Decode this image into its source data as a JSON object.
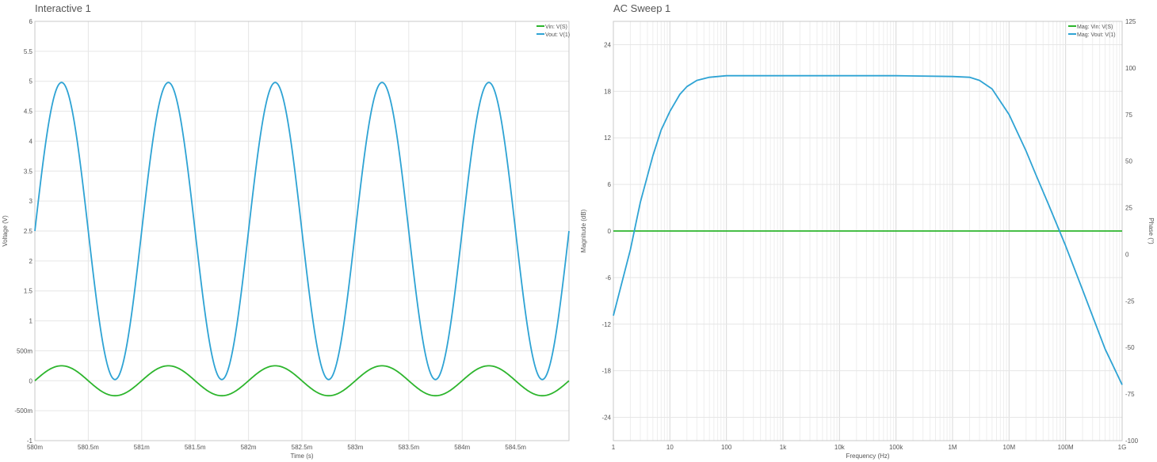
{
  "chart_data": [
    {
      "type": "line",
      "title": "Interactive 1",
      "xlabel": "Time (s)",
      "ylabel": "Voltage (V)",
      "xlim": [
        580,
        585
      ],
      "ylim": [
        -1,
        6
      ],
      "x_ticks": [
        "580m",
        "580.5m",
        "581m",
        "581.5m",
        "582m",
        "582.5m",
        "583m",
        "583.5m",
        "584m",
        "584.5m"
      ],
      "y_ticks": [
        "6",
        "5.5",
        "5",
        "4.5",
        "4",
        "3.5",
        "3",
        "2.5",
        "2",
        "1.5",
        "1",
        "500m",
        "0",
        "-500m",
        "-1"
      ],
      "grid": true,
      "legend_position": "top-right",
      "x_unit": "ms",
      "series": [
        {
          "name": "Vin: V(S)",
          "color": "#2db52d",
          "kind": "sine",
          "offset": 0,
          "amplitude": 0.25,
          "period": 1,
          "phase": 0
        },
        {
          "name": "Vout: V(1)",
          "color": "#2ea3d4",
          "kind": "sine",
          "offset": 2.5,
          "amplitude": 2.48,
          "period": 1,
          "phase": 0
        }
      ]
    },
    {
      "type": "line",
      "title": "AC Sweep 1",
      "xlabel": "Frequency (Hz)",
      "ylabel": "Magnitude (dB)",
      "y2label": "Phase (°)",
      "xscale": "log",
      "xlim": [
        1,
        1000000000
      ],
      "ylim": [
        -27,
        27
      ],
      "y2lim": [
        -100,
        125
      ],
      "x_ticks": [
        "1",
        "10",
        "100",
        "1k",
        "10k",
        "100k",
        "1M",
        "10M",
        "100M",
        "1G"
      ],
      "y_ticks": [
        "24",
        "18",
        "12",
        "6",
        "0",
        "-6",
        "-12",
        "-18",
        "-24"
      ],
      "y2_ticks": [
        "125",
        "100",
        "75",
        "50",
        "25",
        "0",
        "-25",
        "-50",
        "-75",
        "-100"
      ],
      "grid": true,
      "legend_position": "top-right",
      "series": [
        {
          "name": "Mag: Vin: V(S)",
          "color": "#2db52d",
          "x": [
            1,
            1000000000
          ],
          "y": [
            0,
            0
          ]
        },
        {
          "name": "Mag: Vout: V(1)",
          "color": "#2ea3d4",
          "x": [
            1,
            2,
            3,
            5,
            7,
            10,
            15,
            20,
            30,
            50,
            100,
            1000,
            10000,
            100000,
            1000000,
            2000000,
            3000000,
            5000000,
            10000000,
            20000000,
            30000000,
            50000000,
            100000000,
            200000000,
            500000000,
            1000000000
          ],
          "y": [
            -10.9,
            -2.4,
            3.7,
            9.7,
            13.0,
            15.4,
            17.6,
            18.6,
            19.4,
            19.8,
            20.0,
            20.0,
            20.0,
            20.0,
            19.9,
            19.8,
            19.4,
            18.3,
            15.0,
            10.3,
            7.2,
            3.4,
            -1.9,
            -7.6,
            -15.2,
            -19.8
          ]
        }
      ]
    }
  ]
}
